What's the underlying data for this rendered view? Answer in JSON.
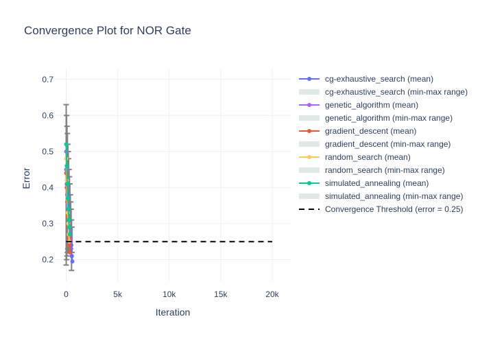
{
  "chart_data": {
    "type": "line",
    "title": "Convergence Plot for NOR Gate",
    "xlabel": "Iteration",
    "ylabel": "Error",
    "xlim": [
      -1100,
      21800
    ],
    "ylim": [
      0.14,
      0.73
    ],
    "x_ticks": [
      0,
      5000,
      10000,
      15000,
      20000
    ],
    "x_tick_labels": [
      "0",
      "5k",
      "10k",
      "15k",
      "20k"
    ],
    "y_ticks": [
      0.2,
      0.3,
      0.4,
      0.5,
      0.6,
      0.7
    ],
    "y_tick_labels": [
      "0.2",
      "0.3",
      "0.4",
      "0.5",
      "0.6",
      "0.7"
    ],
    "grid": true,
    "legend_position": "right",
    "series": [
      {
        "name": "cg-exhaustive_search (mean)",
        "color": "#636efa",
        "x": [
          0,
          50,
          100,
          150,
          200,
          250,
          300,
          350,
          400,
          450,
          500,
          550,
          600
        ],
        "y": [
          0.45,
          0.41,
          0.38,
          0.35,
          0.33,
          0.31,
          0.29,
          0.28,
          0.26,
          0.25,
          0.24,
          0.21,
          0.195
        ]
      },
      {
        "name": "cg-exhaustive_search (min-max range)",
        "fill": "#dfeae6",
        "x": [
          0,
          50,
          100,
          150,
          200,
          250,
          300,
          350,
          400,
          450,
          500,
          550,
          600
        ],
        "y_min": [
          0.24,
          0.23,
          0.22,
          0.22,
          0.21,
          0.21,
          0.2,
          0.2,
          0.2,
          0.19,
          0.19,
          0.19,
          0.19
        ],
        "y_max": [
          0.72,
          0.66,
          0.6,
          0.55,
          0.5,
          0.46,
          0.42,
          0.39,
          0.36,
          0.33,
          0.31,
          0.29,
          0.27
        ]
      },
      {
        "name": "genetic_algorithm (mean)",
        "color": "#ab63fa",
        "x": [
          0,
          50,
          100,
          150,
          200,
          250,
          300,
          350,
          400
        ],
        "y": [
          0.5,
          0.45,
          0.4,
          0.36,
          0.33,
          0.3,
          0.28,
          0.26,
          0.25
        ]
      },
      {
        "name": "genetic_algorithm (min-max range)",
        "fill": "#dfeae6",
        "x": [
          0,
          50,
          100,
          150,
          200,
          250,
          300,
          350,
          400
        ],
        "y_min": [
          0.27,
          0.26,
          0.25,
          0.24,
          0.23,
          0.23,
          0.22,
          0.22,
          0.22
        ],
        "y_max": [
          0.63,
          0.58,
          0.52,
          0.47,
          0.42,
          0.38,
          0.35,
          0.32,
          0.3
        ]
      },
      {
        "name": "gradient_descent (mean)",
        "color": "#ef553b",
        "x": [
          0,
          50,
          100,
          150,
          200,
          250,
          300,
          350
        ],
        "y": [
          0.44,
          0.4,
          0.36,
          0.32,
          0.29,
          0.26,
          0.24,
          0.22
        ]
      },
      {
        "name": "gradient_descent (min-max range)",
        "fill": "#dfeae6",
        "x": [
          0,
          50,
          100,
          150,
          200,
          250,
          300,
          350
        ],
        "y_min": [
          0.3,
          0.28,
          0.26,
          0.24,
          0.22,
          0.21,
          0.2,
          0.2
        ],
        "y_max": [
          0.6,
          0.55,
          0.5,
          0.45,
          0.4,
          0.36,
          0.32,
          0.29
        ]
      },
      {
        "name": "random_search (mean)",
        "color": "#fecb52",
        "x": [
          0,
          50,
          100,
          150,
          200,
          250,
          300
        ],
        "y": [
          0.48,
          0.42,
          0.37,
          0.33,
          0.3,
          0.27,
          0.25
        ]
      },
      {
        "name": "random_search (min-max range)",
        "fill": "#dfeae6",
        "x": [
          0,
          50,
          100,
          150,
          200,
          250,
          300
        ],
        "y_min": [
          0.26,
          0.25,
          0.24,
          0.23,
          0.22,
          0.22,
          0.21
        ],
        "y_max": [
          0.62,
          0.57,
          0.51,
          0.46,
          0.41,
          0.37,
          0.33
        ]
      },
      {
        "name": "simulated_annealing (mean)",
        "color": "#00cc96",
        "x": [
          0,
          50,
          100,
          150,
          200,
          250,
          300,
          350
        ],
        "y": [
          0.52,
          0.46,
          0.41,
          0.37,
          0.34,
          0.31,
          0.29,
          0.27
        ]
      },
      {
        "name": "simulated_annealing (min-max range)",
        "fill": "#dfeae6",
        "x": [
          0,
          50,
          100,
          150,
          200,
          250,
          300,
          350
        ],
        "y_min": [
          0.3,
          0.29,
          0.27,
          0.26,
          0.25,
          0.24,
          0.24,
          0.23
        ],
        "y_max": [
          0.66,
          0.6,
          0.54,
          0.49,
          0.45,
          0.41,
          0.38,
          0.35
        ]
      },
      {
        "name": "Convergence Threshold (error = 0.25)",
        "color": "#000000",
        "dash": "dashed",
        "x": [
          0,
          20000
        ],
        "y": [
          0.25,
          0.25
        ]
      }
    ],
    "error_bars": {
      "color": "#808080",
      "points": [
        {
          "x": 0,
          "y": 0.44,
          "low": 0.185,
          "high": 0.63
        },
        {
          "x": 40,
          "y": 0.43,
          "low": 0.2,
          "high": 0.6
        },
        {
          "x": 80,
          "y": 0.41,
          "low": 0.21,
          "high": 0.57
        },
        {
          "x": 120,
          "y": 0.4,
          "low": 0.22,
          "high": 0.55
        },
        {
          "x": 160,
          "y": 0.38,
          "low": 0.23,
          "high": 0.52
        },
        {
          "x": 200,
          "y": 0.37,
          "low": 0.22,
          "high": 0.5
        },
        {
          "x": 240,
          "y": 0.35,
          "low": 0.24,
          "high": 0.48
        },
        {
          "x": 280,
          "y": 0.34,
          "low": 0.25,
          "high": 0.45
        },
        {
          "x": 320,
          "y": 0.33,
          "low": 0.24,
          "high": 0.43
        },
        {
          "x": 360,
          "y": 0.32,
          "low": 0.25,
          "high": 0.41
        },
        {
          "x": 400,
          "y": 0.31,
          "low": 0.24,
          "high": 0.38
        },
        {
          "x": 440,
          "y": 0.3,
          "low": 0.23,
          "high": 0.36
        },
        {
          "x": 480,
          "y": 0.29,
          "low": 0.22,
          "high": 0.34
        },
        {
          "x": 520,
          "y": 0.28,
          "low": 0.17,
          "high": 0.31
        },
        {
          "x": 560,
          "y": 0.26,
          "low": 0.22,
          "high": 0.29
        }
      ]
    }
  }
}
